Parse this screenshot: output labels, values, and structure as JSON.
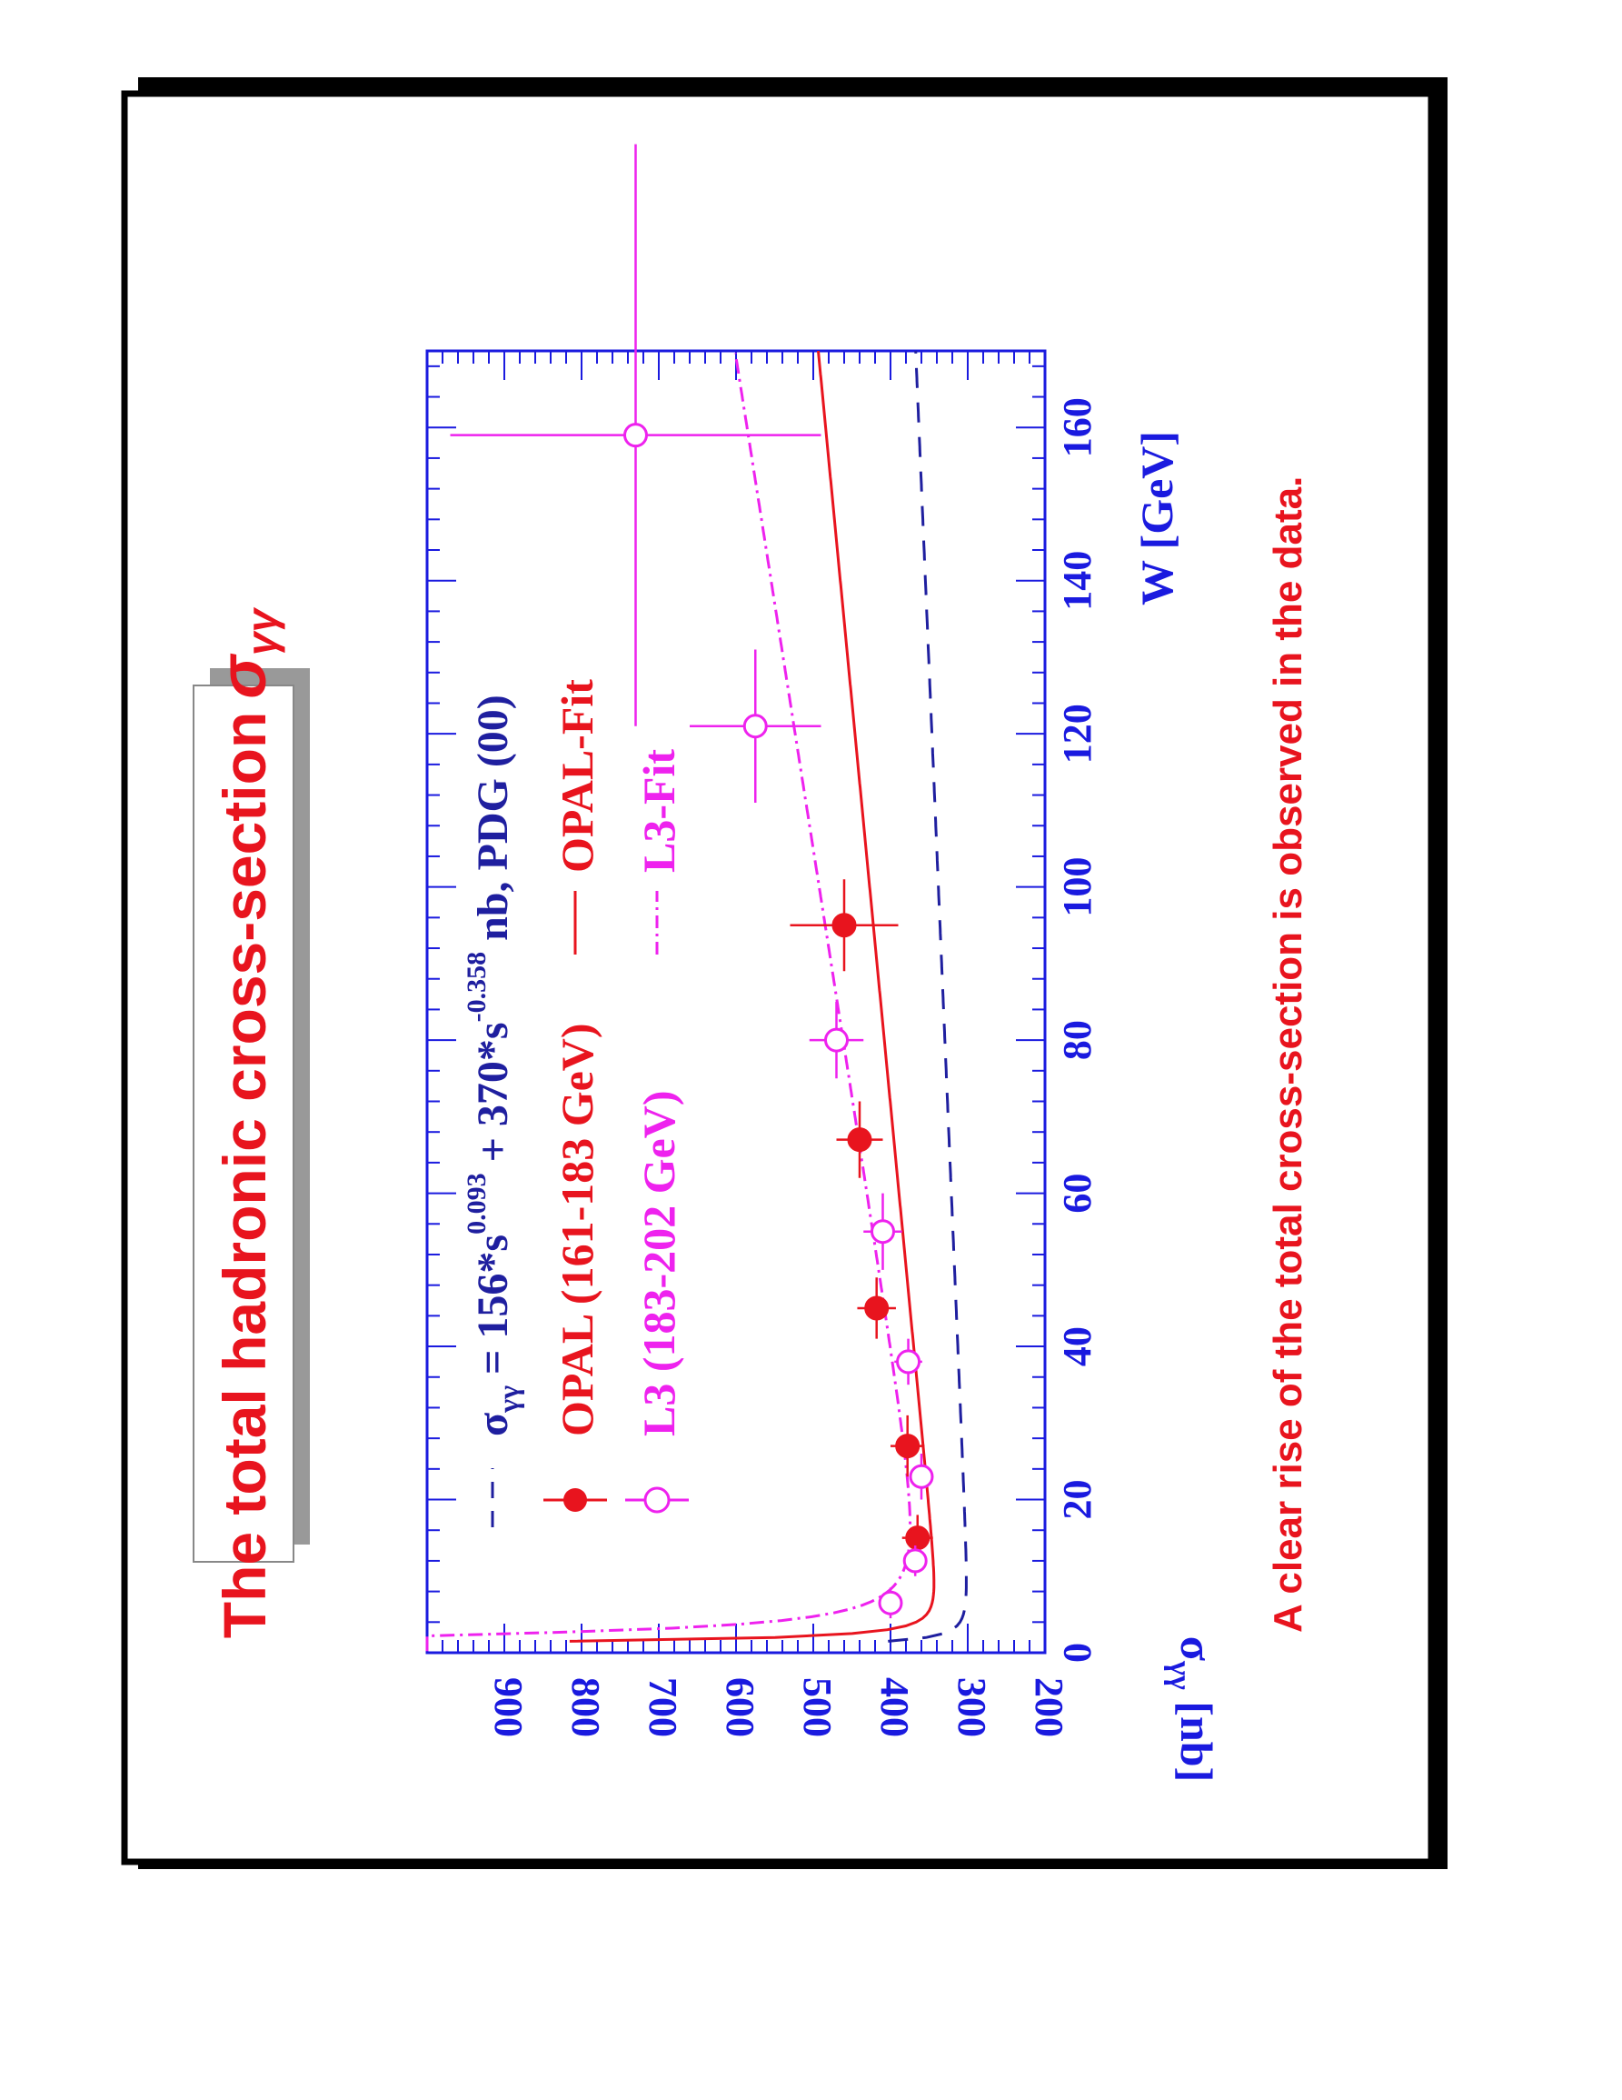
{
  "slide": {
    "title": "The total hadronic cross-section",
    "title_symbol": "σ",
    "title_subscript": "γγ",
    "conclusion": "A clear rise of the total cross-section is observed in the data."
  },
  "colors": {
    "opal": "#e8141e",
    "l3": "#ee22ee",
    "pdg": "#1f1f9f",
    "axis": "#1a1adf",
    "conclusion": "#e8141e"
  },
  "legend": {
    "pdg_prefix": "σ",
    "pdg_sub": "γγ",
    "pdg_mid1": " = 156*s",
    "pdg_exp1": "0.093",
    "pdg_mid2": " + 370*s",
    "pdg_exp2": "-0.358",
    "pdg_suffix": " nb, PDG (00)",
    "opal_data": "OPAL (161-183 GeV)",
    "opal_fit": "OPAL-Fit",
    "l3_data": "L3 (183-202 GeV)",
    "l3_fit": "L3-Fit"
  },
  "chart_data": {
    "type": "scatter",
    "xlabel": "W [GeV]",
    "ylabel_symbol": "σ",
    "ylabel_sub": "γγ",
    "ylabel_unit": " [nb]",
    "xlim": [
      0,
      170
    ],
    "ylim": [
      200,
      1000
    ],
    "x_ticks": [
      0,
      20,
      40,
      60,
      80,
      100,
      120,
      140,
      160
    ],
    "x_tick_labels": [
      "0",
      "20",
      "40",
      "60",
      "80",
      "100",
      "120",
      "140",
      "160"
    ],
    "y_ticks": [
      200,
      300,
      400,
      500,
      600,
      700,
      800,
      900
    ],
    "y_tick_labels": [
      "200",
      "300",
      "400",
      "500",
      "600",
      "700",
      "800",
      "900"
    ],
    "series": [
      {
        "name": "OPAL (161-183 GeV)",
        "marker": "filled-circle",
        "x": [
          15,
          27,
          45,
          67,
          95
        ],
        "y": [
          365,
          378,
          418,
          440,
          460
        ],
        "x_err": [
          3,
          4,
          4,
          5,
          6
        ],
        "y_err": [
          20,
          22,
          25,
          30,
          70
        ]
      },
      {
        "name": "L3 (183-202 GeV)",
        "marker": "open-circle",
        "x": [
          6.5,
          12,
          23,
          38,
          55,
          80,
          121,
          159
        ],
        "y": [
          400,
          368,
          360,
          377,
          410,
          470,
          575,
          730
        ],
        "x_err": [
          2,
          2,
          3,
          3,
          5,
          5,
          10,
          38
        ],
        "y_err": [
          15,
          15,
          15,
          18,
          25,
          35,
          85,
          240
        ]
      }
    ]
  }
}
